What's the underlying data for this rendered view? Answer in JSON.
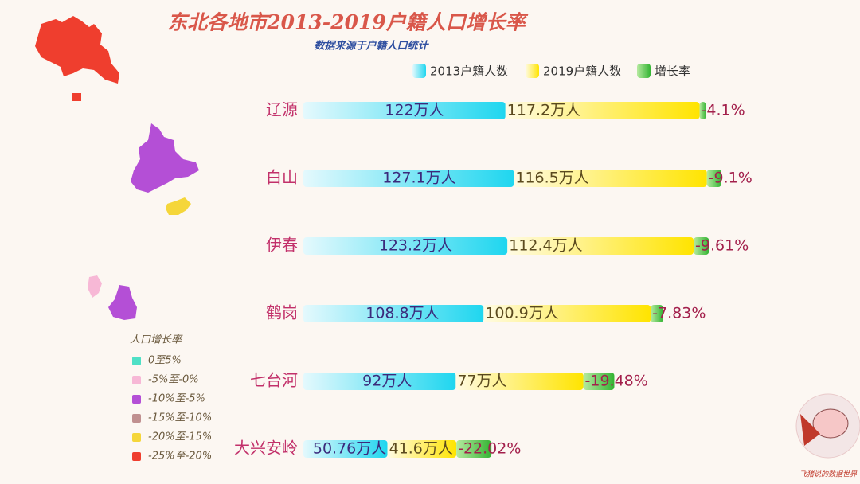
{
  "chart_data": {
    "type": "bar",
    "title": "东北各地市2013-2019户籍人口增长率",
    "subtitle": "数据来源于户籍人口统计",
    "categories": [
      "辽源",
      "白山",
      "伊春",
      "鹤岗",
      "七台河",
      "大兴安岭"
    ],
    "series": [
      {
        "name": "2013户籍人数",
        "color": "#1fd6ef",
        "values": [
          122,
          127.1,
          123.2,
          108.8,
          92,
          50.76
        ],
        "value_labels": [
          "122万人",
          "127.1万人",
          "123.2万人",
          "108.8万人",
          "92万人",
          "50.76万人"
        ]
      },
      {
        "name": "2019户籍人数",
        "color": "#ffe400",
        "values": [
          117.2,
          116.5,
          112.4,
          100.9,
          77,
          41.6
        ],
        "value_labels": [
          "117.2万人",
          "116.5万人",
          "112.4万人",
          "100.9万人",
          "77万人",
          "41.6万人"
        ]
      },
      {
        "name": "增长率",
        "color": "#33b433",
        "values": [
          -4.1,
          -9.1,
          -9.61,
          -7.83,
          -19.48,
          -22.02
        ],
        "value_labels": [
          "-4.1%",
          "-9.1%",
          "-9.61%",
          "-7.83%",
          "-19.48%",
          "-22.02%"
        ]
      }
    ]
  },
  "map_legend": {
    "title": "人口增长率",
    "items": [
      {
        "label": "0至5%",
        "color": "#4fe0c6"
      },
      {
        "label": "-5%至-0%",
        "color": "#f7b8d6"
      },
      {
        "label": "-10%至-5%",
        "color": "#b44fd6"
      },
      {
        "label": "-15%至-10%",
        "color": "#c09090"
      },
      {
        "label": "-20%至-15%",
        "color": "#f5d63a"
      },
      {
        "label": "-25%至-20%",
        "color": "#ef3e2e"
      }
    ]
  },
  "watermark": "飞猪说的数据世界"
}
